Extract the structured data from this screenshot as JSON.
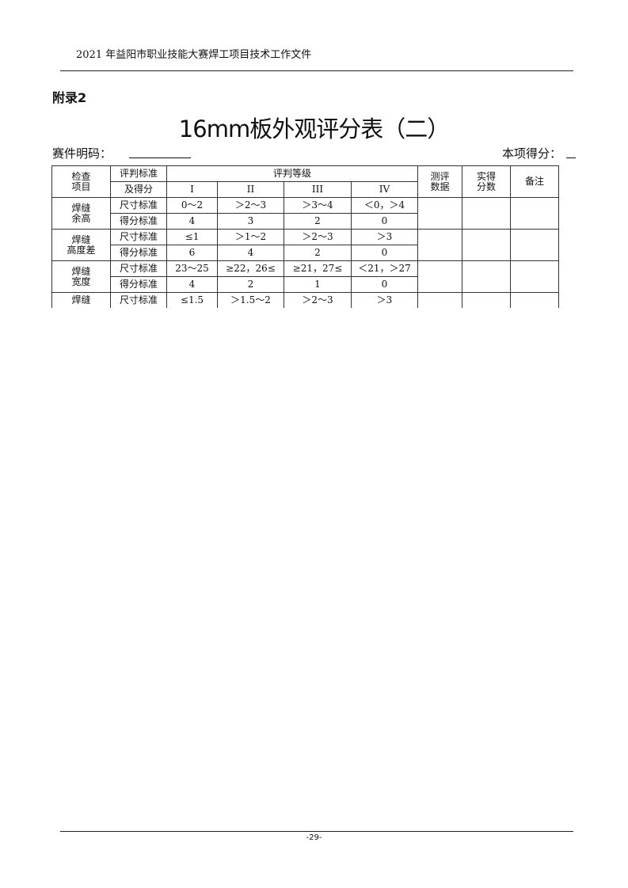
{
  "header": "2021 年益阳市职业技能大赛焊工项目技术工作文件",
  "appendix": "附录2",
  "title": "16mm板外观评分表（二）",
  "code_label": "赛件明码：",
  "score_label": "本项得分：",
  "table": {
    "h_item": [
      "检查",
      "项目"
    ],
    "h_std": [
      "评判标准",
      "及得分"
    ],
    "h_grade": "评判等级",
    "grades": [
      "I",
      "II",
      "III",
      "IV"
    ],
    "h_data": [
      "测评",
      "数据"
    ],
    "h_actual": [
      "实得",
      "分数"
    ],
    "h_note": "备注",
    "rows": [
      {
        "item": [
          "焊缝",
          "余高"
        ],
        "size_label": "尺寸标准",
        "size": [
          "0～2",
          "＞2～3",
          "＞3～4",
          "＜0，＞4"
        ],
        "score_label": "得分标准",
        "score": [
          "4",
          "3",
          "2",
          "0"
        ]
      },
      {
        "item": [
          "焊缝",
          "高度差"
        ],
        "size_label": "尺寸标准",
        "size": [
          "≤1",
          "＞1～2",
          "＞2～3",
          "＞3"
        ],
        "score_label": "得分标准",
        "score": [
          "6",
          "4",
          "2",
          "0"
        ]
      },
      {
        "item": [
          "焊缝",
          "宽度"
        ],
        "size_label": "尺寸标准",
        "size": [
          "23～25",
          "≥22，26≤",
          "≥21，27≤",
          "＜21，＞27"
        ],
        "score_label": "得分标准",
        "score": [
          "4",
          "2",
          "1",
          "0"
        ]
      },
      {
        "item": [
          "焊缝"
        ],
        "size_label": "尺寸标准",
        "size": [
          "≤1.5",
          "＞1.5～2",
          "＞2～3",
          "＞3"
        ]
      }
    ]
  },
  "page_number": "-29-"
}
